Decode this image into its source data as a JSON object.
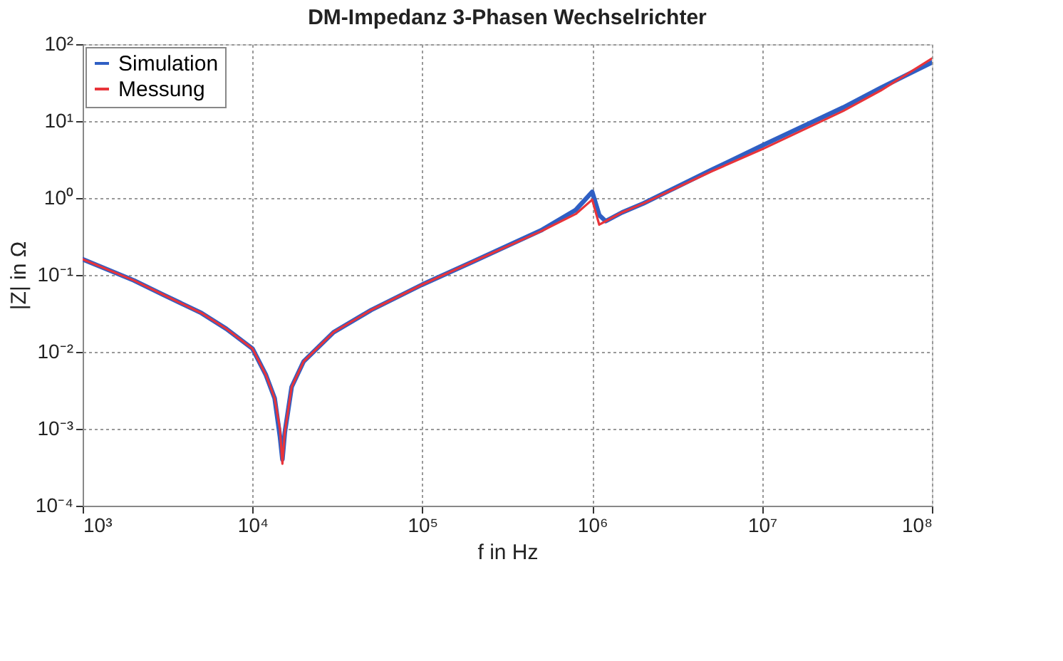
{
  "chart_data": {
    "type": "line",
    "title": "DM-Impedanz 3-Phasen Wechselrichter",
    "xlabel": "f in Hz",
    "ylabel": "|Z| in Ω",
    "log": "xy",
    "grid": true,
    "legend": "top left",
    "line_style": "solid",
    "marker": "none",
    "xlim": [
      1000,
      100000000
    ],
    "ylim": [
      0.0001,
      100
    ],
    "xticks": [
      {
        "value": 1000,
        "label": "10³"
      },
      {
        "value": 10000,
        "label": "10⁴"
      },
      {
        "value": 100000,
        "label": "10⁵"
      },
      {
        "value": 1000000,
        "label": "10⁶"
      },
      {
        "value": 10000000,
        "label": "10⁷"
      },
      {
        "value": 100000000,
        "label": "10⁸"
      }
    ],
    "yticks": [
      {
        "value": 0.0001,
        "label": "10⁻⁴"
      },
      {
        "value": 0.001,
        "label": "10⁻³"
      },
      {
        "value": 0.01,
        "label": "10⁻²"
      },
      {
        "value": 0.1,
        "label": "10⁻¹"
      },
      {
        "value": 1,
        "label": "10⁰"
      },
      {
        "value": 10,
        "label": "10¹"
      },
      {
        "value": 100,
        "label": "10²"
      }
    ],
    "x": [
      1000,
      2000,
      3000,
      5000,
      7000,
      10000,
      12000,
      13500,
      14500,
      15000,
      15500,
      17000,
      20000,
      30000,
      50000,
      100000,
      200000,
      500000,
      800000,
      1000000,
      1100000,
      1200000,
      1500000,
      2000000,
      5000000,
      10000000,
      30000000,
      50000000,
      100000000
    ],
    "series": [
      {
        "name": "Simulation",
        "color": "#2f5fc4",
        "values": [
          0.16,
          0.085,
          0.055,
          0.032,
          0.02,
          0.011,
          0.005,
          0.0025,
          0.0008,
          0.0004,
          0.0009,
          0.0035,
          0.0075,
          0.018,
          0.035,
          0.075,
          0.15,
          0.38,
          0.7,
          1.2,
          0.6,
          0.5,
          0.65,
          0.85,
          2.3,
          4.8,
          15,
          27,
          58
        ]
      },
      {
        "name": "Messung",
        "color": "#e8343a",
        "values": [
          0.16,
          0.085,
          0.055,
          0.032,
          0.02,
          0.011,
          0.005,
          0.0025,
          0.001,
          0.00035,
          0.0009,
          0.0035,
          0.0075,
          0.018,
          0.035,
          0.075,
          0.15,
          0.37,
          0.62,
          0.95,
          0.45,
          0.5,
          0.65,
          0.85,
          2.2,
          4.3,
          13.5,
          25,
          65
        ]
      }
    ]
  }
}
